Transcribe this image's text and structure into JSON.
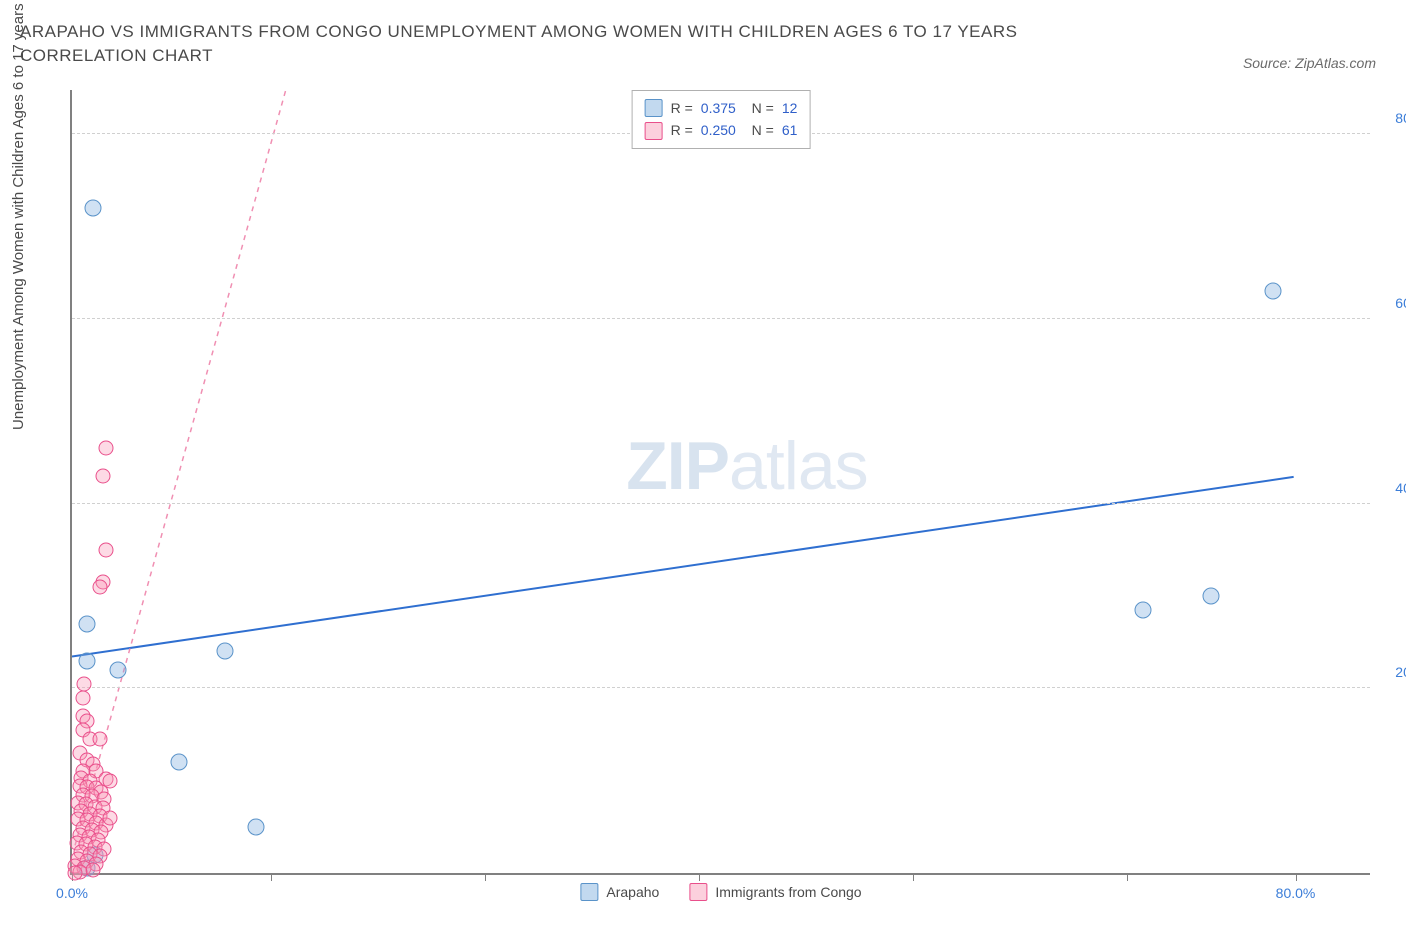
{
  "title": "ARAPAHO VS IMMIGRANTS FROM CONGO UNEMPLOYMENT AMONG WOMEN WITH CHILDREN AGES 6 TO 17 YEARS CORRELATION CHART",
  "source": "Source: ZipAtlas.com",
  "yaxis_label": "Unemployment Among Women with Children Ages 6 to 17 years",
  "watermark_bold": "ZIP",
  "watermark_light": "atlas",
  "chart": {
    "type": "scatter",
    "xlim": [
      0,
      85
    ],
    "ylim": [
      0,
      85
    ],
    "xtick_positions": [
      0,
      13,
      27,
      41,
      55,
      69,
      80
    ],
    "xtick_labels": [
      "0.0%",
      "",
      "",
      "",
      "",
      "",
      "80.0%"
    ],
    "ytick_positions": [
      20,
      40,
      60,
      80
    ],
    "ytick_labels": [
      "20.0%",
      "40.0%",
      "60.0%",
      "80.0%"
    ],
    "grid_color": "#d0d0d0",
    "background_color": "#ffffff",
    "axis_color": "#808080",
    "tick_label_color": "#3b7dd8",
    "series": [
      {
        "name": "Arapaho",
        "color_fill": "rgba(120,170,220,0.35)",
        "color_stroke": "#5a93c9",
        "marker_size": 17,
        "R": "0.375",
        "N": "12",
        "trend": {
          "x1": 0,
          "y1": 23.5,
          "x2": 80,
          "y2": 43,
          "color": "#2f6fd0",
          "width": 2,
          "dash": "none"
        },
        "points": [
          {
            "x": 1.4,
            "y": 72
          },
          {
            "x": 78.5,
            "y": 63
          },
          {
            "x": 70,
            "y": 28.5
          },
          {
            "x": 74.5,
            "y": 30
          },
          {
            "x": 1.0,
            "y": 27
          },
          {
            "x": 3.0,
            "y": 22
          },
          {
            "x": 1.0,
            "y": 23
          },
          {
            "x": 10,
            "y": 24
          },
          {
            "x": 7,
            "y": 12
          },
          {
            "x": 12,
            "y": 5
          },
          {
            "x": 1.5,
            "y": 2
          },
          {
            "x": 1.0,
            "y": 0.5
          }
        ]
      },
      {
        "name": "Immigrants from Congo",
        "color_fill": "rgba(248,150,180,0.35)",
        "color_stroke": "#e94f8b",
        "marker_size": 15,
        "R": "0.250",
        "N": "61",
        "trend": {
          "x1": 0.2,
          "y1": 3,
          "x2": 14,
          "y2": 85,
          "color": "#f08fb2",
          "width": 1.5,
          "dash": "5,5"
        },
        "points": [
          {
            "x": 2.2,
            "y": 46
          },
          {
            "x": 2.0,
            "y": 43
          },
          {
            "x": 2.2,
            "y": 35
          },
          {
            "x": 2.0,
            "y": 31.5
          },
          {
            "x": 1.8,
            "y": 31
          },
          {
            "x": 0.7,
            "y": 19
          },
          {
            "x": 0.8,
            "y": 20.5
          },
          {
            "x": 0.7,
            "y": 17
          },
          {
            "x": 1.0,
            "y": 16.5
          },
          {
            "x": 0.7,
            "y": 15.5
          },
          {
            "x": 1.2,
            "y": 14.5
          },
          {
            "x": 1.8,
            "y": 14.5
          },
          {
            "x": 0.5,
            "y": 13
          },
          {
            "x": 1.0,
            "y": 12.2
          },
          {
            "x": 1.4,
            "y": 11.8
          },
          {
            "x": 0.7,
            "y": 11
          },
          {
            "x": 1.6,
            "y": 11
          },
          {
            "x": 0.6,
            "y": 10.3
          },
          {
            "x": 1.2,
            "y": 10
          },
          {
            "x": 2.2,
            "y": 10.2
          },
          {
            "x": 0.5,
            "y": 9.4
          },
          {
            "x": 1.0,
            "y": 9.3
          },
          {
            "x": 1.6,
            "y": 9.2
          },
          {
            "x": 1.9,
            "y": 8.8
          },
          {
            "x": 0.7,
            "y": 8.5
          },
          {
            "x": 1.3,
            "y": 8.3
          },
          {
            "x": 2.1,
            "y": 8.0
          },
          {
            "x": 0.4,
            "y": 7.6
          },
          {
            "x": 0.9,
            "y": 7.5
          },
          {
            "x": 1.5,
            "y": 7.2
          },
          {
            "x": 2.0,
            "y": 7.0
          },
          {
            "x": 0.6,
            "y": 6.7
          },
          {
            "x": 1.2,
            "y": 6.4
          },
          {
            "x": 1.8,
            "y": 6.2
          },
          {
            "x": 0.4,
            "y": 5.9
          },
          {
            "x": 1.0,
            "y": 5.7
          },
          {
            "x": 1.6,
            "y": 5.4
          },
          {
            "x": 2.2,
            "y": 5.2
          },
          {
            "x": 0.7,
            "y": 4.9
          },
          {
            "x": 1.3,
            "y": 4.7
          },
          {
            "x": 1.9,
            "y": 4.4
          },
          {
            "x": 0.5,
            "y": 4.1
          },
          {
            "x": 1.1,
            "y": 3.9
          },
          {
            "x": 1.7,
            "y": 3.6
          },
          {
            "x": 0.3,
            "y": 3.3
          },
          {
            "x": 0.9,
            "y": 3.1
          },
          {
            "x": 1.5,
            "y": 2.8
          },
          {
            "x": 2.1,
            "y": 2.6
          },
          {
            "x": 0.6,
            "y": 2.3
          },
          {
            "x": 1.2,
            "y": 2.1
          },
          {
            "x": 1.8,
            "y": 1.8
          },
          {
            "x": 0.4,
            "y": 1.5
          },
          {
            "x": 1.0,
            "y": 1.3
          },
          {
            "x": 1.6,
            "y": 1.0
          },
          {
            "x": 0.2,
            "y": 0.8
          },
          {
            "x": 0.8,
            "y": 0.5
          },
          {
            "x": 1.4,
            "y": 0.3
          },
          {
            "x": 0.5,
            "y": 0.1
          },
          {
            "x": 0.2,
            "y": 0.0
          },
          {
            "x": 2.5,
            "y": 10
          },
          {
            "x": 2.5,
            "y": 6
          }
        ]
      }
    ],
    "legend_bottom": [
      {
        "label": "Arapaho",
        "swatch": "blue"
      },
      {
        "label": "Immigrants from Congo",
        "swatch": "pink"
      }
    ]
  }
}
